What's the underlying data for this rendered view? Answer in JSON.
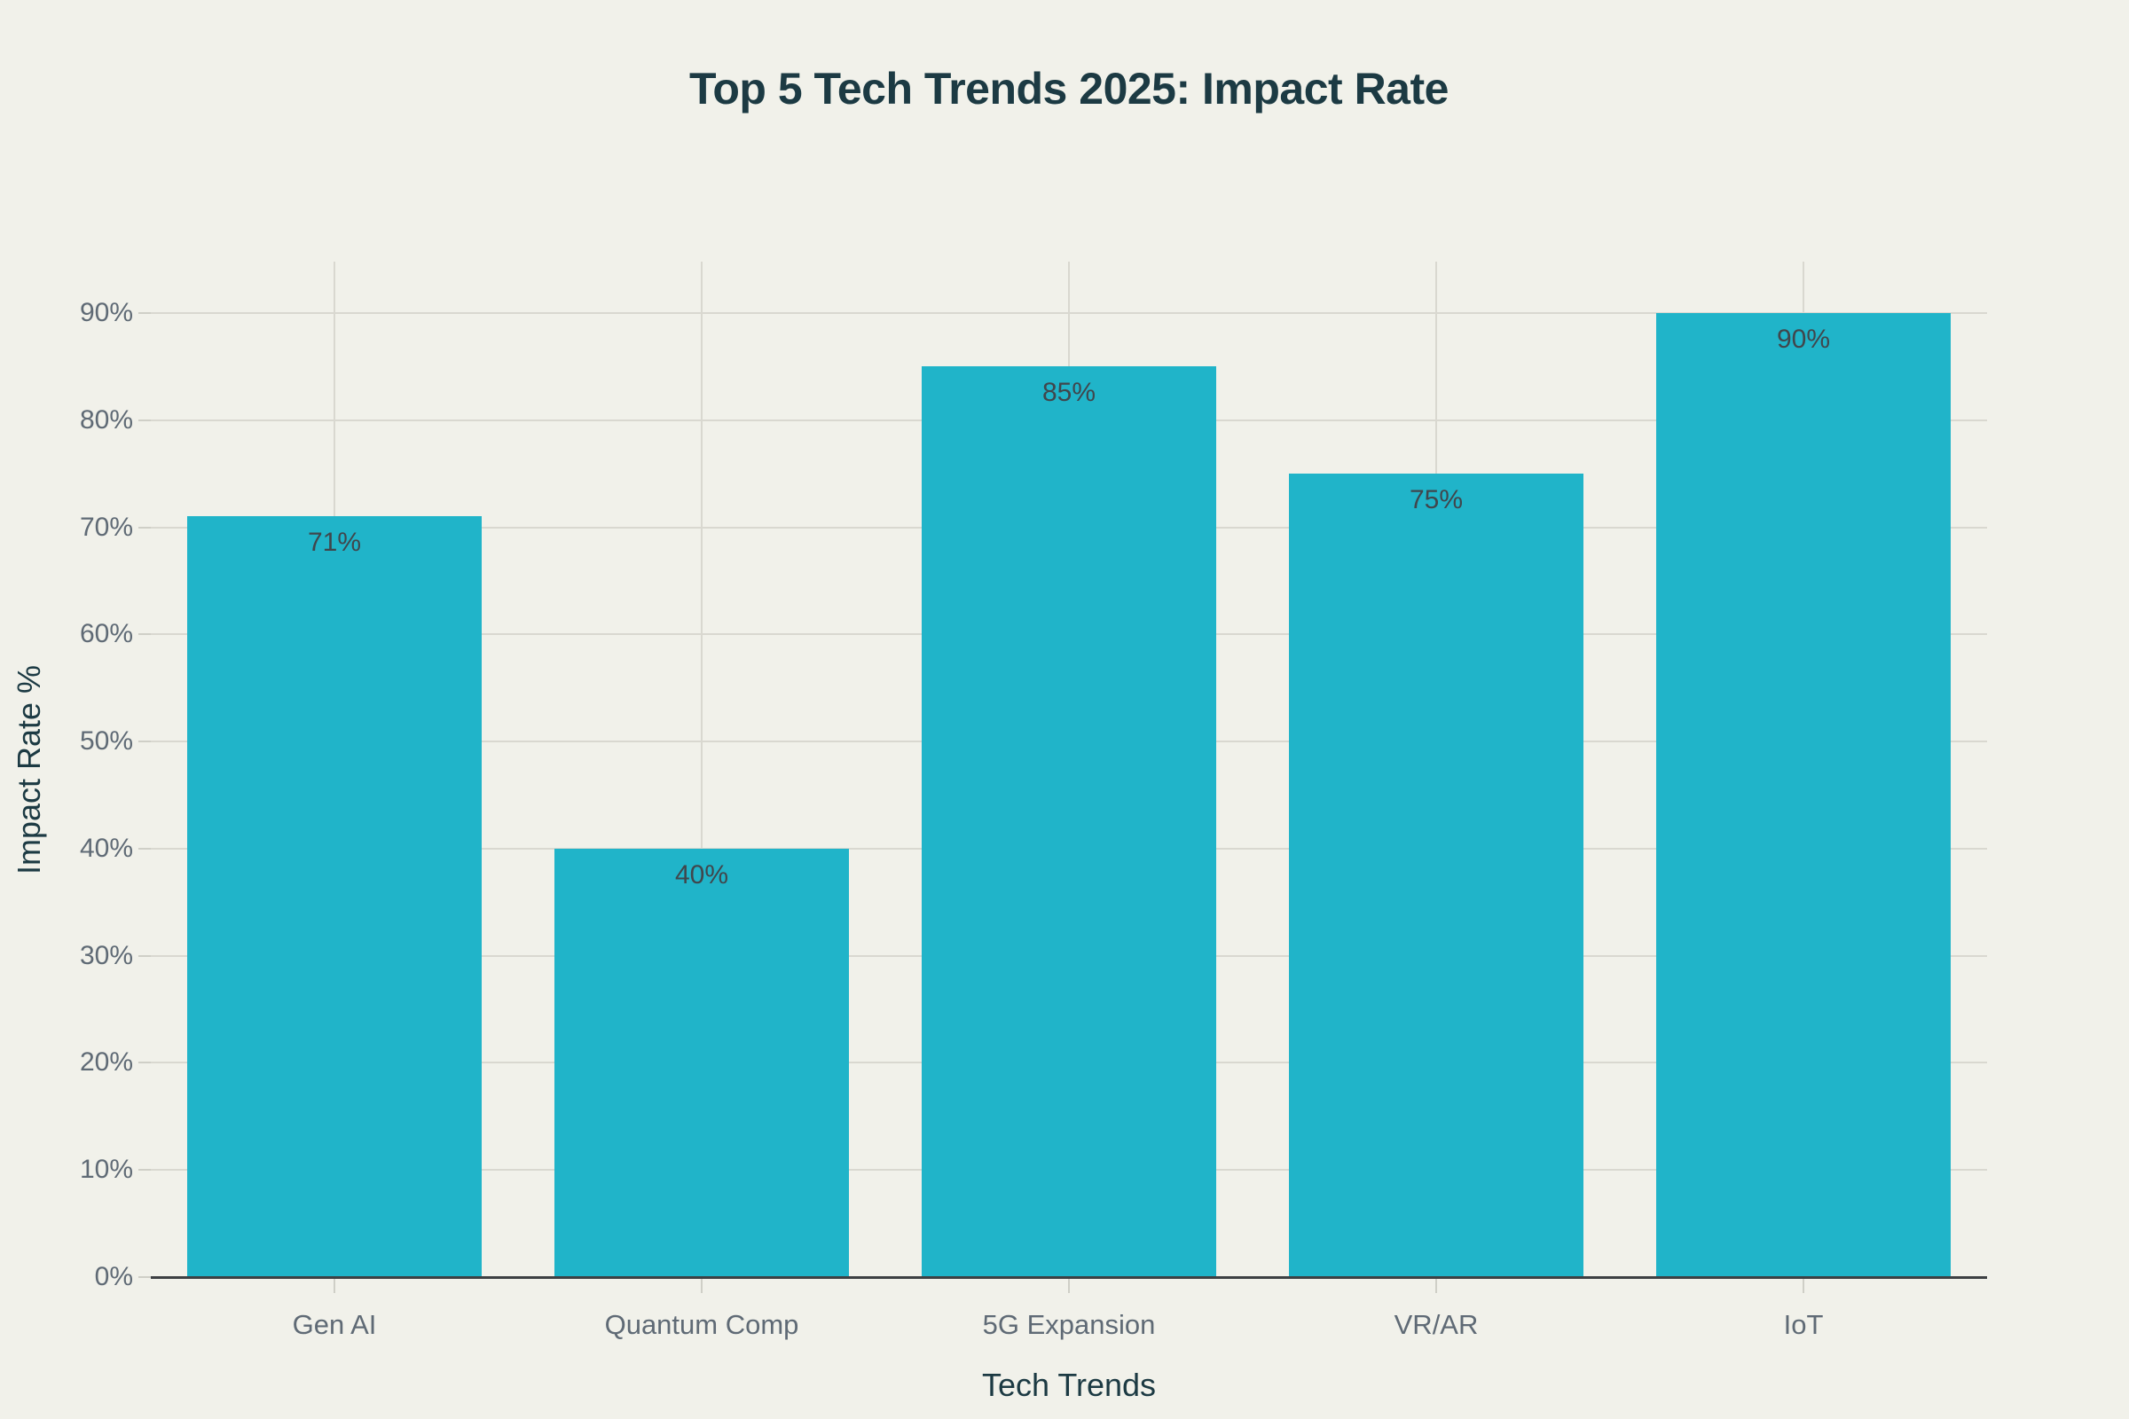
{
  "title": "Top 5 Tech Trends 2025: Impact Rate",
  "chart_data": {
    "type": "bar",
    "title": "Top 5 Tech Trends 2025: Impact Rate",
    "categories": [
      "Gen AI",
      "Quantum Comp",
      "5G Expansion",
      "VR/AR",
      "IoT"
    ],
    "values": [
      71,
      40,
      85,
      75,
      90
    ],
    "value_labels": [
      "71%",
      "40%",
      "85%",
      "75%",
      "90%"
    ],
    "xlabel": "Tech Trends",
    "ylabel": "Impact Rate %",
    "ylim": [
      0,
      95
    ],
    "yticks": [
      0,
      10,
      20,
      30,
      40,
      50,
      60,
      70,
      80,
      90
    ],
    "ytick_labels": [
      "0%",
      "10%",
      "20%",
      "30%",
      "40%",
      "50%",
      "60%",
      "70%",
      "80%",
      "90%"
    ],
    "grid": true,
    "legend": false,
    "value_labels_position": "inside-top"
  },
  "colors": {
    "background": "#f1f1ea",
    "bar": "#20b4c9",
    "title": "#1c3a43",
    "axis_title": "#1c3a43",
    "tick_label": "#5f6a75",
    "value_label": "#40464c",
    "gridline": "#d9d8d0",
    "tick_mark": "#cfcfc7",
    "axis_line": "#3d4043"
  }
}
